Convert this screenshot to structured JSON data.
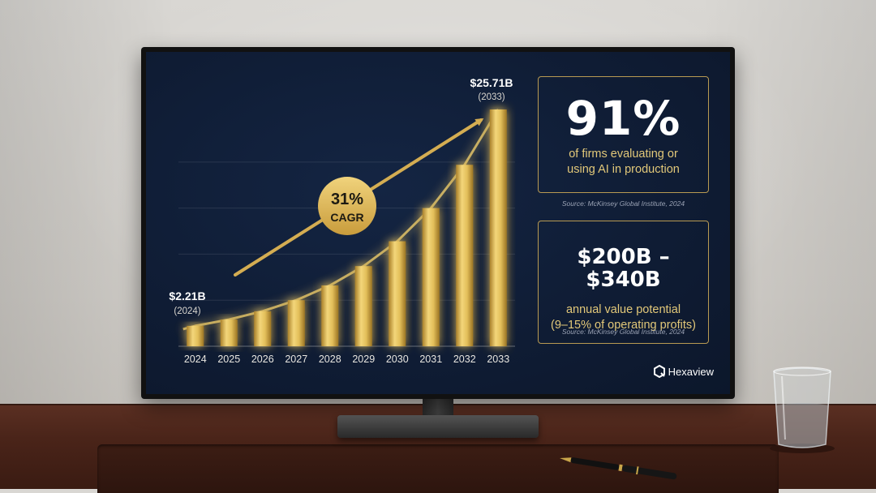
{
  "chart_data": {
    "type": "bar",
    "categories": [
      "2024",
      "2025",
      "2026",
      "2027",
      "2028",
      "2029",
      "2030",
      "2031",
      "2032",
      "2033"
    ],
    "values": [
      2.21,
      2.9,
      3.8,
      5.0,
      6.6,
      8.7,
      11.4,
      15.0,
      19.7,
      25.71
    ],
    "unit": "$B",
    "ylim": [
      0,
      28
    ],
    "grid": true,
    "start_callout": {
      "value": "$2.21B",
      "sub": "(2024)"
    },
    "end_callout": {
      "value": "$25.71B",
      "sub": "(2033)"
    },
    "cagr": {
      "value": "31%",
      "label": "CAGR"
    },
    "bar_color": "#d9b44a"
  },
  "stats": [
    {
      "value": "91%",
      "description_line1": "of firms evaluating or",
      "description_line2": "using AI in production",
      "source": "Source: McKinsey Global Institute, 2024"
    },
    {
      "value": "$200B – $340B",
      "description_line1": "annual value potential",
      "description_line2": "(9–15% of operating profits)",
      "source": "Source: McKinsey Global Institute, 2024"
    }
  ],
  "brand": {
    "name": "Hexaview",
    "icon": "hexaview-logo-icon"
  },
  "colors": {
    "screen_bg": "#0f1c34",
    "accent_gold": "#d9b44a",
    "card_border": "#b89a52",
    "text_gold": "#e2c879"
  }
}
